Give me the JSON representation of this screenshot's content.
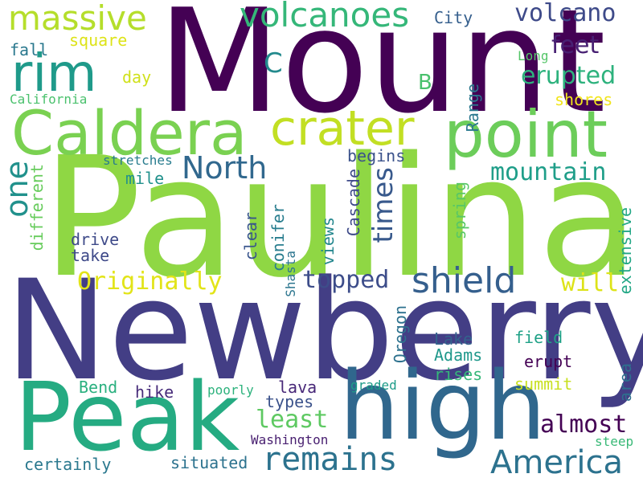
{
  "background": "#ffffff",
  "words": [
    {
      "text": "Mount",
      "color": "#440154"
    },
    {
      "text": "Paulina",
      "color": "#8fd744"
    },
    {
      "text": "Newberry",
      "color": "#433e85"
    },
    {
      "text": "Peak",
      "color": "#25ab82"
    },
    {
      "text": "high",
      "color": "#30678d"
    },
    {
      "text": "point",
      "color": "#6ccd5a"
    },
    {
      "text": "Caldera",
      "color": "#7ad151"
    },
    {
      "text": "crater",
      "color": "#c2df23"
    },
    {
      "text": "rim",
      "color": "#1f9a8a"
    },
    {
      "text": "massive",
      "color": "#b5de2b"
    },
    {
      "text": "volcanoes",
      "color": "#35b779"
    },
    {
      "text": "volcano",
      "color": "#3e4a89"
    },
    {
      "text": "feet",
      "color": "#482173"
    },
    {
      "text": "erupted",
      "color": "#2db27d"
    },
    {
      "text": "C",
      "color": "#238a8d"
    },
    {
      "text": "B",
      "color": "#4ac16d"
    },
    {
      "text": "City",
      "color": "#355f8d"
    },
    {
      "text": "fall",
      "color": "#2a788e"
    },
    {
      "text": "square",
      "color": "#dde318"
    },
    {
      "text": "day",
      "color": "#d0e11c"
    },
    {
      "text": "California",
      "color": "#4ac16d"
    },
    {
      "text": "Long",
      "color": "#54c568"
    },
    {
      "text": "shores",
      "color": "#f1e51d"
    },
    {
      "text": "Range",
      "color": "#2a788e"
    },
    {
      "text": "one",
      "color": "#21918c"
    },
    {
      "text": "North",
      "color": "#31688e"
    },
    {
      "text": "mountain",
      "color": "#1f9e89"
    },
    {
      "text": "stretches",
      "color": "#287c8e"
    },
    {
      "text": "begins",
      "color": "#3b528b"
    },
    {
      "text": "mile",
      "color": "#21918c"
    },
    {
      "text": "times",
      "color": "#38598c"
    },
    {
      "text": "different",
      "color": "#67cc5c"
    },
    {
      "text": "drive",
      "color": "#3e4a89"
    },
    {
      "text": "take",
      "color": "#3e4989"
    },
    {
      "text": "clear",
      "color": "#39558c"
    },
    {
      "text": "conifer",
      "color": "#287d8e"
    },
    {
      "text": "views",
      "color": "#24878e"
    },
    {
      "text": "Cascade",
      "color": "#3e4a89"
    },
    {
      "text": "spring",
      "color": "#58c765"
    },
    {
      "text": "extensive",
      "color": "#22a785"
    },
    {
      "text": "Originally",
      "color": "#e2e418"
    },
    {
      "text": "topped",
      "color": "#3d4d8a"
    },
    {
      "text": "shield",
      "color": "#355f8d"
    },
    {
      "text": "will",
      "color": "#dde318"
    },
    {
      "text": "Shasta",
      "color": "#2b758e"
    },
    {
      "text": "Oregon",
      "color": "#2d718e"
    },
    {
      "text": "Lake",
      "color": "#33628d"
    },
    {
      "text": "Adams",
      "color": "#1f988b"
    },
    {
      "text": "rises",
      "color": "#35b779"
    },
    {
      "text": "field",
      "color": "#1fa187"
    },
    {
      "text": "erupt",
      "color": "#440154"
    },
    {
      "text": "summit",
      "color": "#c8e020"
    },
    {
      "text": "area",
      "color": "#2e6f8e"
    },
    {
      "text": "Bend",
      "color": "#2ab07f"
    },
    {
      "text": "hike",
      "color": "#472c7a"
    },
    {
      "text": "poorly",
      "color": "#2db27d"
    },
    {
      "text": "graded",
      "color": "#1e9c89"
    },
    {
      "text": "lava",
      "color": "#482878"
    },
    {
      "text": "types",
      "color": "#3b528b"
    },
    {
      "text": "least",
      "color": "#5ec962"
    },
    {
      "text": "almost",
      "color": "#440154"
    },
    {
      "text": "remains",
      "color": "#2c728e"
    },
    {
      "text": "America",
      "color": "#2c728e"
    },
    {
      "text": "certainly",
      "color": "#2a788e"
    },
    {
      "text": "situated",
      "color": "#2c728e"
    },
    {
      "text": "Washington",
      "color": "#481f70"
    },
    {
      "text": "steep",
      "color": "#39b977"
    }
  ]
}
